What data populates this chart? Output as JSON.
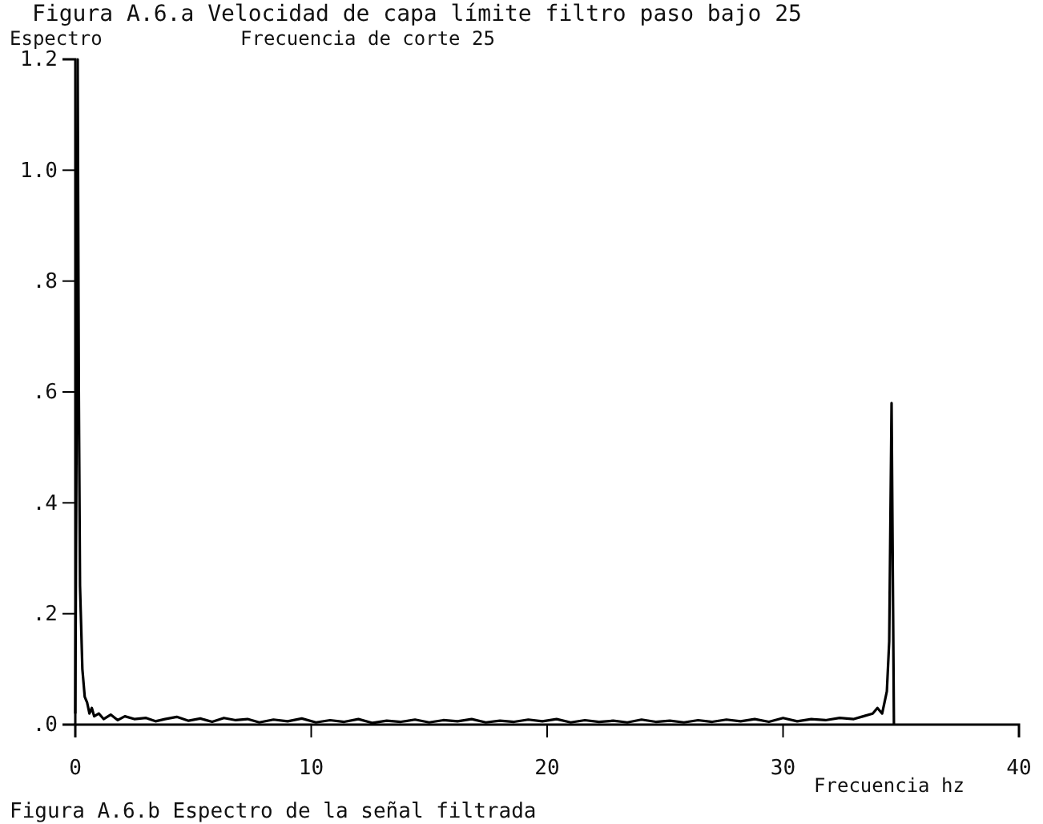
{
  "chart_data": {
    "type": "line",
    "title": "Figura A.6.a Velocidad de capa límite filtro paso bajo 25",
    "subtitle": "Frecuencia de corte 25",
    "ylabel": "Espectro",
    "xlabel": "Frecuencia hz",
    "annotations": [
      "Figura A.6.b Espectro de la señal filtrada"
    ],
    "xlim": [
      0,
      40
    ],
    "xticks": [
      0,
      10,
      20,
      30,
      40
    ],
    "ylim": [
      0,
      1.2
    ],
    "yticks": [
      {
        "value": 0,
        "label": ".0"
      },
      {
        "value": 0.2,
        "label": ".2"
      },
      {
        "value": 0.4,
        "label": ".4"
      },
      {
        "value": 0.6,
        "label": ".6"
      },
      {
        "value": 0.8,
        "label": ".8"
      },
      {
        "value": 1,
        "label": "1.0"
      },
      {
        "value": 1.2,
        "label": "1.2"
      }
    ],
    "grid": false,
    "marker": "none",
    "line_style": "solid",
    "series": [
      {
        "color": "#000000",
        "x": [
          0,
          0.05,
          0.1,
          0.15,
          0.2,
          0.3,
          0.4,
          0.5,
          0.6,
          0.7,
          0.8,
          1,
          1.2,
          1.5,
          1.8,
          2.1,
          2.5,
          3,
          3.4,
          3.8,
          4.3,
          4.8,
          5.3,
          5.8,
          6.3,
          6.8,
          7.3,
          7.8,
          8.4,
          9,
          9.6,
          10.2,
          10.8,
          11.4,
          12,
          12.6,
          13.2,
          13.8,
          14.4,
          15,
          15.6,
          16.2,
          16.8,
          17.4,
          18,
          18.6,
          19.2,
          19.8,
          20.4,
          21,
          21.6,
          22.2,
          22.8,
          23.4,
          24,
          24.6,
          25.2,
          25.8,
          26.4,
          27,
          27.6,
          28.2,
          28.8,
          29.4,
          30,
          30.6,
          31.2,
          31.8,
          32.4,
          33,
          33.4,
          33.8,
          34,
          34.2,
          34.3,
          34.4,
          34.5,
          34.6,
          34.7
        ],
        "values": [
          0.02,
          0.5,
          1.2,
          0.6,
          0.25,
          0.1,
          0.05,
          0.04,
          0.02,
          0.03,
          0.015,
          0.02,
          0.01,
          0.018,
          0.008,
          0.015,
          0.01,
          0.012,
          0.006,
          0.01,
          0.014,
          0.007,
          0.011,
          0.005,
          0.012,
          0.008,
          0.01,
          0.004,
          0.009,
          0.006,
          0.011,
          0.004,
          0.008,
          0.005,
          0.01,
          0.003,
          0.007,
          0.005,
          0.009,
          0.004,
          0.008,
          0.006,
          0.01,
          0.004,
          0.007,
          0.005,
          0.009,
          0.006,
          0.01,
          0.004,
          0.008,
          0.005,
          0.007,
          0.004,
          0.009,
          0.005,
          0.007,
          0.004,
          0.008,
          0.005,
          0.009,
          0.006,
          0.01,
          0.005,
          0.012,
          0.006,
          0.01,
          0.008,
          0.012,
          0.01,
          0.015,
          0.02,
          0.03,
          0.02,
          0.04,
          0.06,
          0.15,
          0.58,
          0.0
        ]
      }
    ]
  }
}
